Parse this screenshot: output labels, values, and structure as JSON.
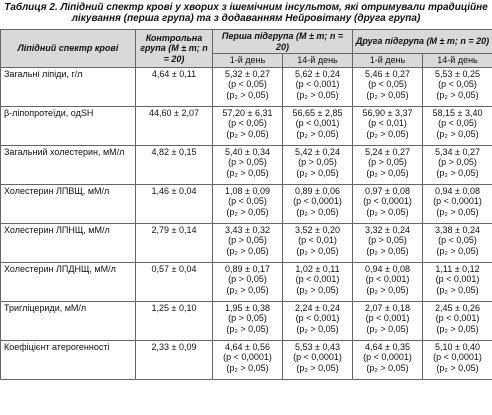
{
  "title": "Таблиця 2. Лiпiдний спектр кровi у хворих з iшемiчним iнсультом, якi отримували традицiйне лiкування (перша група) та з додаванням Нейровiтану (друга група)",
  "table": {
    "headers": {
      "param": "Лiпiдний спектр кровi",
      "control": "Контрольна група (M ± m; n = 20)",
      "group1": "Перша пiдгрупа (M ± m; n = 20)",
      "group2": "Друга пiдгрупа (M ± m; n = 20)",
      "days": [
        "1-й день",
        "14-й день",
        "1-й день",
        "14-й день"
      ]
    },
    "rows": [
      {
        "name": "Загальнi лiпiди, г/л",
        "control": "4,64 ± 0,11",
        "cells": [
          {
            "value": "5,32 ± 0,27",
            "p": "(p < 0,05)",
            "p2": "(p₂ > 0,05)"
          },
          {
            "value": "5,62 ± 0,24",
            "p": "(p < 0,001)",
            "p2": "(p₂ > 0,05)"
          },
          {
            "value": "5,46 ± 0,27",
            "p": "(p < 0,05)",
            "p2": "(p₂ > 0,05)"
          },
          {
            "value": "5,53 ± 0,25",
            "p": "(p < 0,05)",
            "p2": "(p₂ > 0,05)"
          }
        ]
      },
      {
        "name": "β-лiпопротеїди, одSH",
        "control": "44,60 ± 2,07",
        "cells": [
          {
            "value": "57,20 ± 6,31",
            "p": "(p < 0,05)",
            "p2": "(p₂ > 0,05)"
          },
          {
            "value": "56,65 ± 2,85",
            "p": "(p < 0,001)",
            "p2": "(p₂ > 0,05)"
          },
          {
            "value": "56,90 ± 3,37",
            "p": "(p < 0,01)",
            "p2": "(p₂ > 0,05)"
          },
          {
            "value": "58,15 ± 3,40",
            "p": "(p < 0,05)",
            "p2": "(p₂ > 0,05)"
          }
        ]
      },
      {
        "name": "Загальний холестерин, мМ/л",
        "control": "4,82 ± 0,15",
        "cells": [
          {
            "value": "5,40 ± 0,34",
            "p": "(p > 0,05)",
            "p2": "(p₂ > 0,05)"
          },
          {
            "value": "5,42 ± 0,24",
            "p": "(p > 0,05)",
            "p2": "(p₂ > 0,05)"
          },
          {
            "value": "5,24 ± 0,27",
            "p": "(p > 0,05)",
            "p2": "(p₂ > 0,05)"
          },
          {
            "value": "5,34 ± 0,27",
            "p": "(p > 0,05)",
            "p2": "(p₂ > 0,05)"
          }
        ]
      },
      {
        "name": "Холестерин ЛПВЩ, мМ/л",
        "control": "1,46 ± 0,04",
        "cells": [
          {
            "value": "1,08 ± 0,09",
            "p": "(p < 0,05)",
            "p2": "(p₂ > 0,05)"
          },
          {
            "value": "0,89 ± 0,06",
            "p": "(p < 0,0001)",
            "p2": "(p₂ > 0,05)"
          },
          {
            "value": "0,97 ± 0,08",
            "p": "(p < 0,0001)",
            "p2": "(p₂ > 0,05)"
          },
          {
            "value": "0,94 ± 0,08",
            "p": "(p < 0,0001)",
            "p2": "(p₂ > 0,05)"
          }
        ]
      },
      {
        "name": "Холестерин ЛПНЩ, мМ/л",
        "control": "2,79 ± 0,14",
        "cells": [
          {
            "value": "3,43 ± 0,32",
            "p": "(p > 0,05)",
            "p2": "(p₂ > 0,05)"
          },
          {
            "value": "3,52 ± 0,20",
            "p": "(p < 0,01)",
            "p2": "(p₂ > 0,05)"
          },
          {
            "value": "3,32 ± 0,24",
            "p": "(p > 0,05)",
            "p2": "(p₂ > 0,05)"
          },
          {
            "value": "3,38 ± 0,24",
            "p": "(p < 0,05)",
            "p2": "(p₂ > 0,05)"
          }
        ]
      },
      {
        "name": "Холестерин ЛПДНЩ, мМ/л",
        "control": "0,57 ± 0,04",
        "cells": [
          {
            "value": "0,89 ± 0,17",
            "p": "(p > 0,05)",
            "p2": "(p₂ > 0,05)"
          },
          {
            "value": "1,02 ± 0,11",
            "p": "(p < 0,001)",
            "p2": "(p₂ > 0,05)"
          },
          {
            "value": "0,94 ± 0,08",
            "p": "(p < 0,001)",
            "p2": "(p₂ > 0,05)"
          },
          {
            "value": "1,11 ± 0,12",
            "p": "(p < 0,001)",
            "p2": "(p₂ > 0,05)"
          }
        ]
      },
      {
        "name": "Тригліцериди, мМ/л",
        "control": "1,25 ± 0,10",
        "cells": [
          {
            "value": "1,95 ± 0,38",
            "p": "(p > 0,05)",
            "p2": "(p₂ > 0,05)"
          },
          {
            "value": "2,24 ± 0,24",
            "p": "(p < 0,001)",
            "p2": "(p₂ > 0,05)"
          },
          {
            "value": "2,07 ± 0,18",
            "p": "(p < 0,001)",
            "p2": "(p₂ > 0,05)"
          },
          {
            "value": "2,45 ± 0,26",
            "p": "(p < 0,001)",
            "p2": "(p₂ > 0,05)"
          }
        ]
      },
      {
        "name": "Коефiцiєнт атерогенностi",
        "control": "2,33 ± 0,09",
        "cells": [
          {
            "value": "4,64 ± 0,56",
            "p": "(p < 0,0001)",
            "p2": "(p₂ > 0,05)"
          },
          {
            "value": "5,53 ± 0,43",
            "p": "(p < 0,0001)",
            "p2": "(p₂ > 0,05)"
          },
          {
            "value": "4,64 ± 0,35",
            "p": "(p < 0,0001)",
            "p2": "(p₂ > 0,05)"
          },
          {
            "value": "5,10 ± 0,40",
            "p": "(p < 0,0001)",
            "p2": "(p₂ > 0,05)"
          }
        ]
      }
    ]
  }
}
